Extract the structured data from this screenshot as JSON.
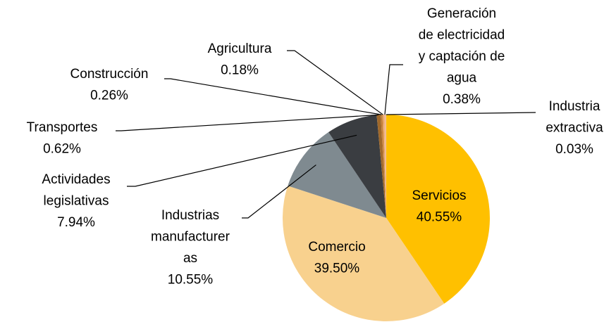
{
  "chart_data": {
    "type": "pie",
    "categories": [
      "Servicios",
      "Comercio",
      "Industrias manufactureras",
      "Actividades legislativas",
      "Transportes",
      "Construcción",
      "Agricultura",
      "Generación de electricidad y captación de agua",
      "Industria extractiva"
    ],
    "values": [
      40.55,
      39.5,
      10.55,
      7.94,
      0.62,
      0.26,
      0.18,
      0.38,
      0.03
    ],
    "value_labels": [
      "40.55%",
      "39.50%",
      "10.55%",
      "7.94%",
      "0.62%",
      "0.26%",
      "0.18%",
      "0.38%",
      "0.03%"
    ],
    "colors": [
      "#ffc000",
      "#f8d18e",
      "#7f8a90",
      "#3a3d41",
      "#a0692b",
      "#c47f3a",
      "#dd9b55",
      "#f2b48a",
      "#d9d9d9"
    ]
  }
}
